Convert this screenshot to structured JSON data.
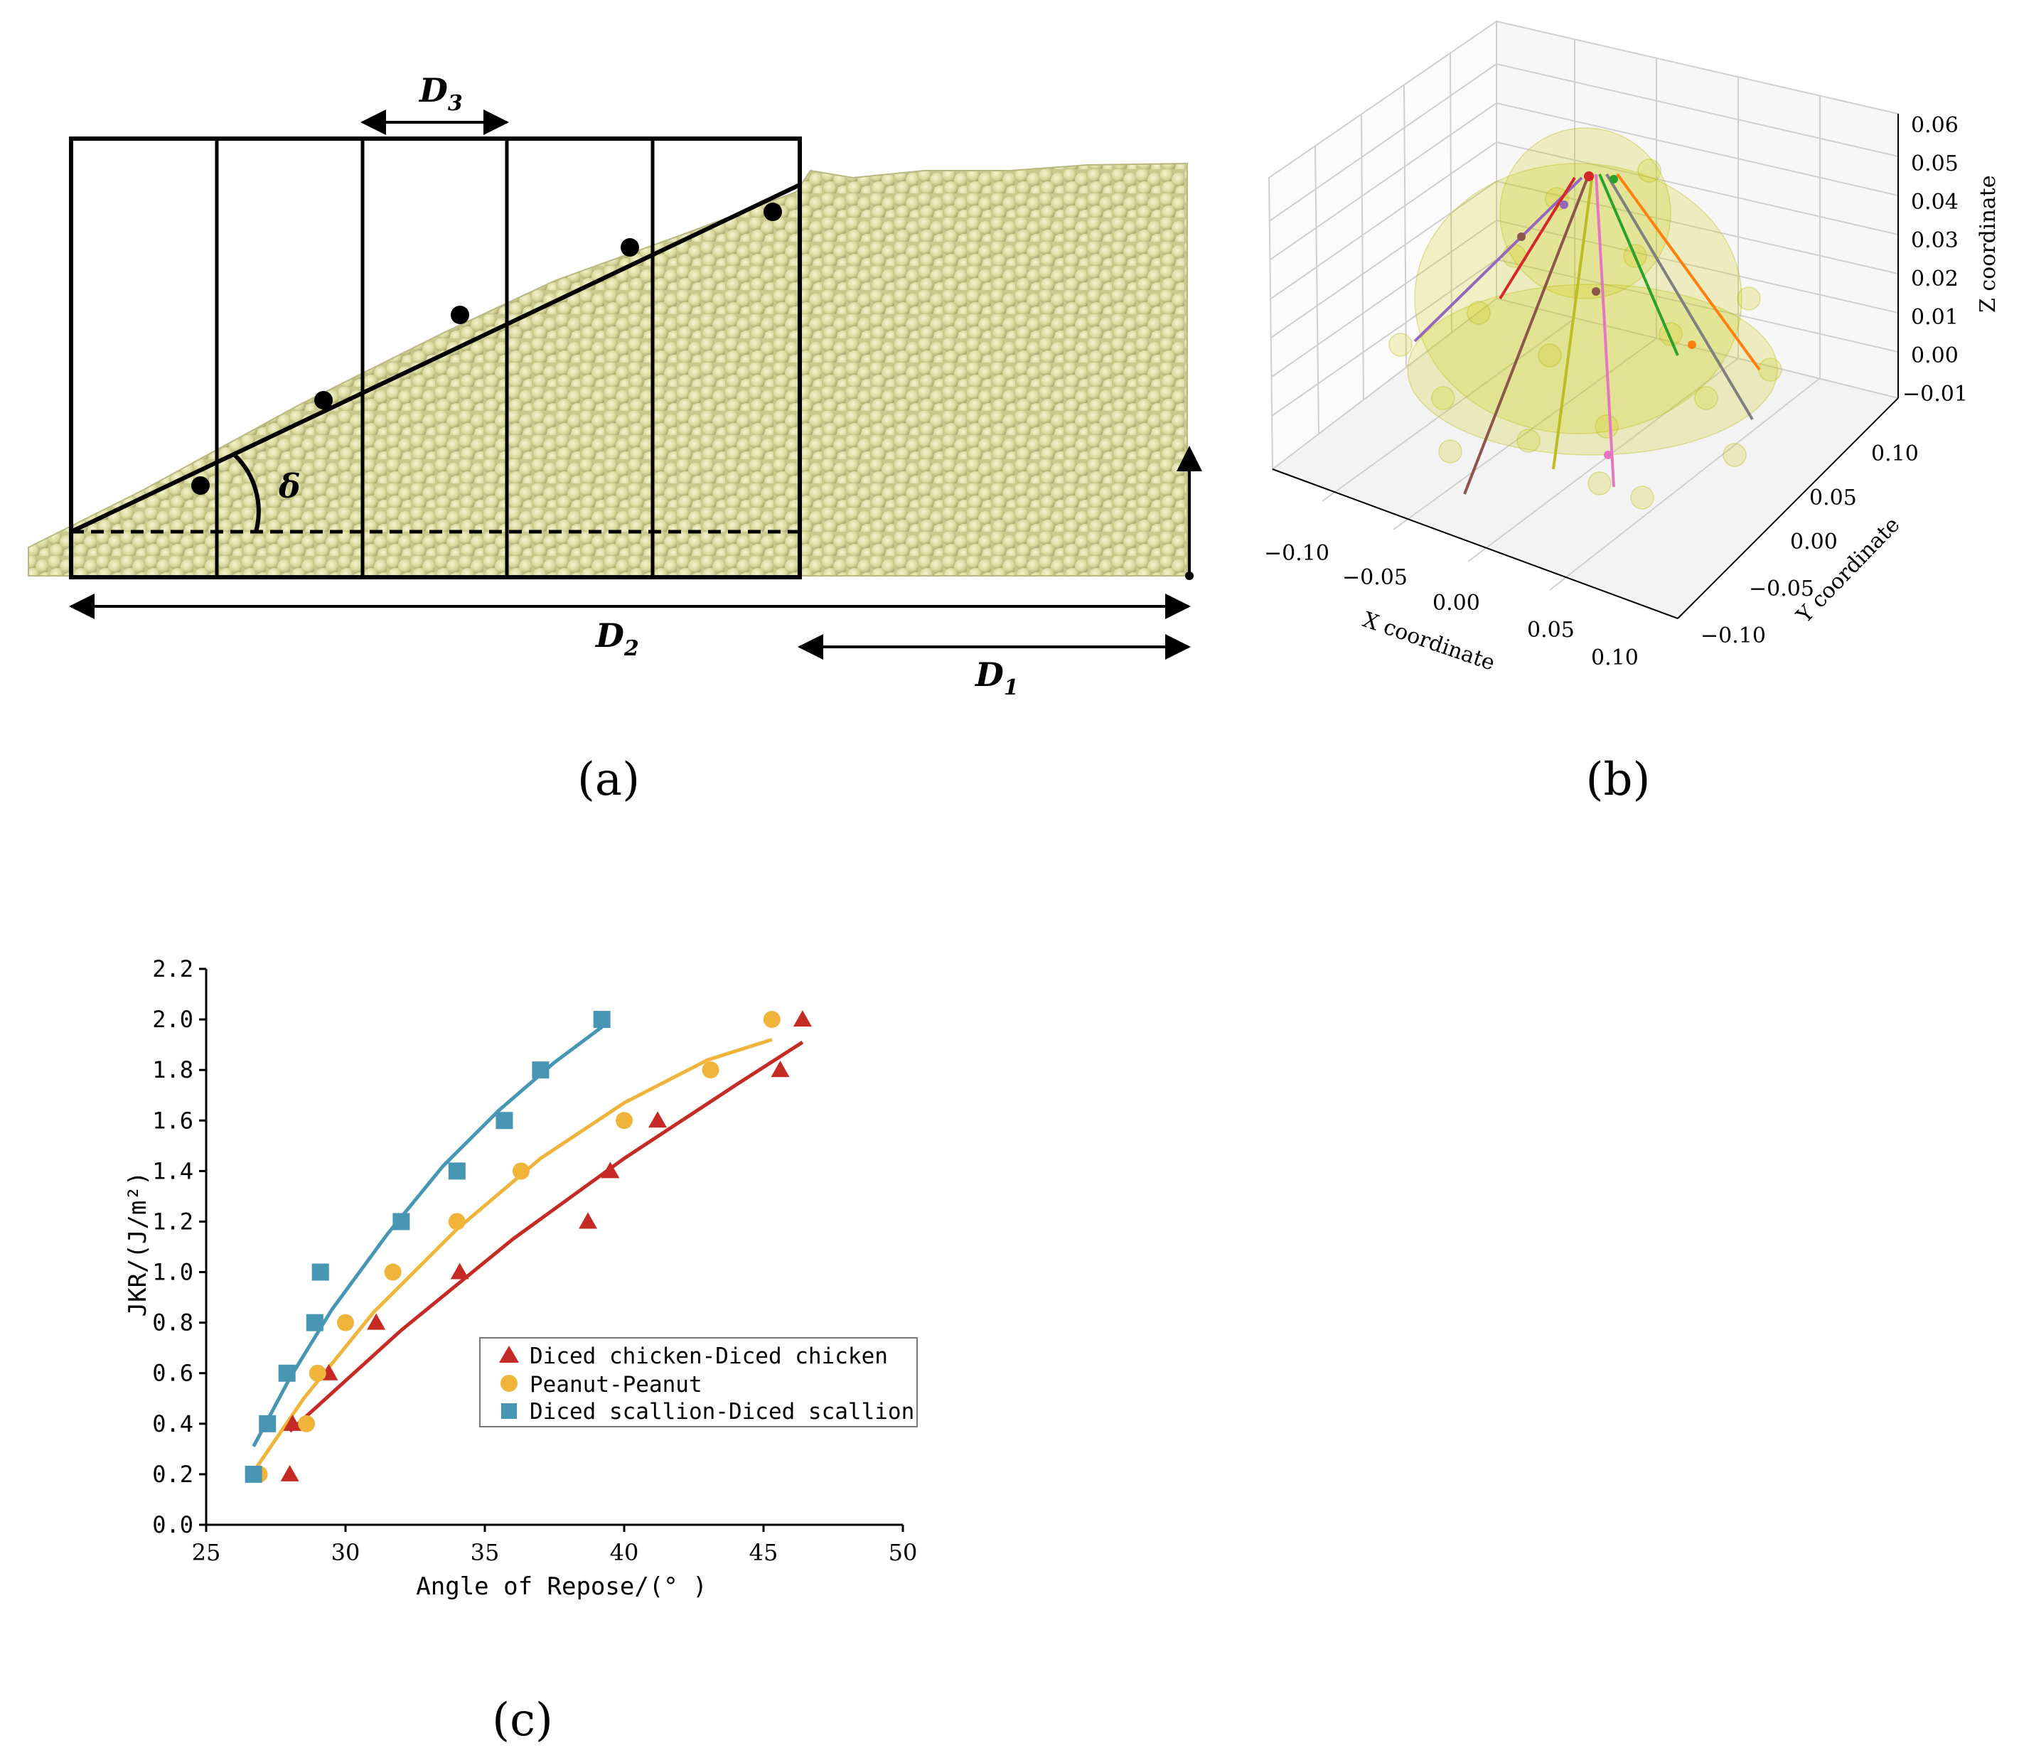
{
  "panel_labels": {
    "a": "(a)",
    "b": "(b)",
    "c": "(c)"
  },
  "panel_a": {
    "dimension_labels": {
      "d1": "D",
      "d1_sub": "1",
      "d2": "D",
      "d2_sub": "2",
      "d3": "D",
      "d3_sub": "3"
    },
    "angle_label": "δ",
    "particle_color": "#dcdca0"
  },
  "panel_b": {
    "axis_labels": {
      "x": "X coordinate",
      "y": "Y coordinate",
      "z": "Z coordinate"
    },
    "x_ticks": [
      "−0.10",
      "−0.05",
      "0.00",
      "0.05",
      "0.10"
    ],
    "y_ticks": [
      "0.10",
      "0.05",
      "0.00",
      "−0.05",
      "−0.10"
    ],
    "z_ticks": [
      "0.06",
      "0.05",
      "0.04",
      "0.03",
      "0.02",
      "0.01",
      "0.00",
      "−0.01"
    ]
  },
  "chart_data": {
    "type": "scatter",
    "title": "",
    "xlabel": "Angle of Repose/(° )",
    "ylabel": "JKR/(J/m²)",
    "xlim": [
      25,
      50
    ],
    "ylim": [
      0.0,
      2.2
    ],
    "x_ticks": [
      "25",
      "30",
      "35",
      "40",
      "45",
      "50"
    ],
    "y_ticks": [
      "0.0",
      "0.2",
      "0.4",
      "0.6",
      "0.8",
      "1.0",
      "1.2",
      "1.4",
      "1.6",
      "1.8",
      "2.0",
      "2.2"
    ],
    "legend_position": "middle-right",
    "series": [
      {
        "name": "Diced chicken-Diced chicken",
        "marker": "triangle",
        "color": "#c62a24",
        "x": [
          28.0,
          28.1,
          29.4,
          31.1,
          34.1,
          38.7,
          39.5,
          41.2,
          45.6,
          46.4
        ],
        "y": [
          0.2,
          0.4,
          0.6,
          0.8,
          1.0,
          1.2,
          1.4,
          1.6,
          1.8,
          2.0
        ],
        "fit_x": [
          28.0,
          32.0,
          36.0,
          40.0,
          44.0,
          46.4
        ],
        "fit_y": [
          0.37,
          0.77,
          1.13,
          1.45,
          1.74,
          1.91
        ]
      },
      {
        "name": "Peanut-Peanut",
        "marker": "circle",
        "color": "#f0b43a",
        "x": [
          26.9,
          28.6,
          29.0,
          30.0,
          31.7,
          34.0,
          36.3,
          40.0,
          43.1,
          45.3
        ],
        "y": [
          0.2,
          0.4,
          0.6,
          0.8,
          1.0,
          1.2,
          1.4,
          1.6,
          1.8,
          2.0
        ],
        "fit_x": [
          26.7,
          28.5,
          31.0,
          34.0,
          37.0,
          40.0,
          43.0,
          45.3
        ],
        "fit_y": [
          0.21,
          0.5,
          0.84,
          1.17,
          1.45,
          1.67,
          1.84,
          1.92
        ]
      },
      {
        "name": "Diced scallion-Diced scallion",
        "marker": "square",
        "color": "#4796b4",
        "x": [
          26.7,
          27.2,
          27.9,
          28.9,
          29.1,
          32.0,
          34.0,
          35.7,
          37.0,
          39.2
        ],
        "y": [
          0.2,
          0.4,
          0.6,
          0.8,
          1.0,
          1.2,
          1.4,
          1.6,
          1.8,
          2.0
        ],
        "fit_x": [
          26.7,
          28.0,
          29.5,
          31.5,
          33.5,
          35.5,
          37.5,
          39.2
        ],
        "fit_y": [
          0.31,
          0.58,
          0.85,
          1.15,
          1.42,
          1.64,
          1.83,
          1.97
        ]
      }
    ]
  }
}
